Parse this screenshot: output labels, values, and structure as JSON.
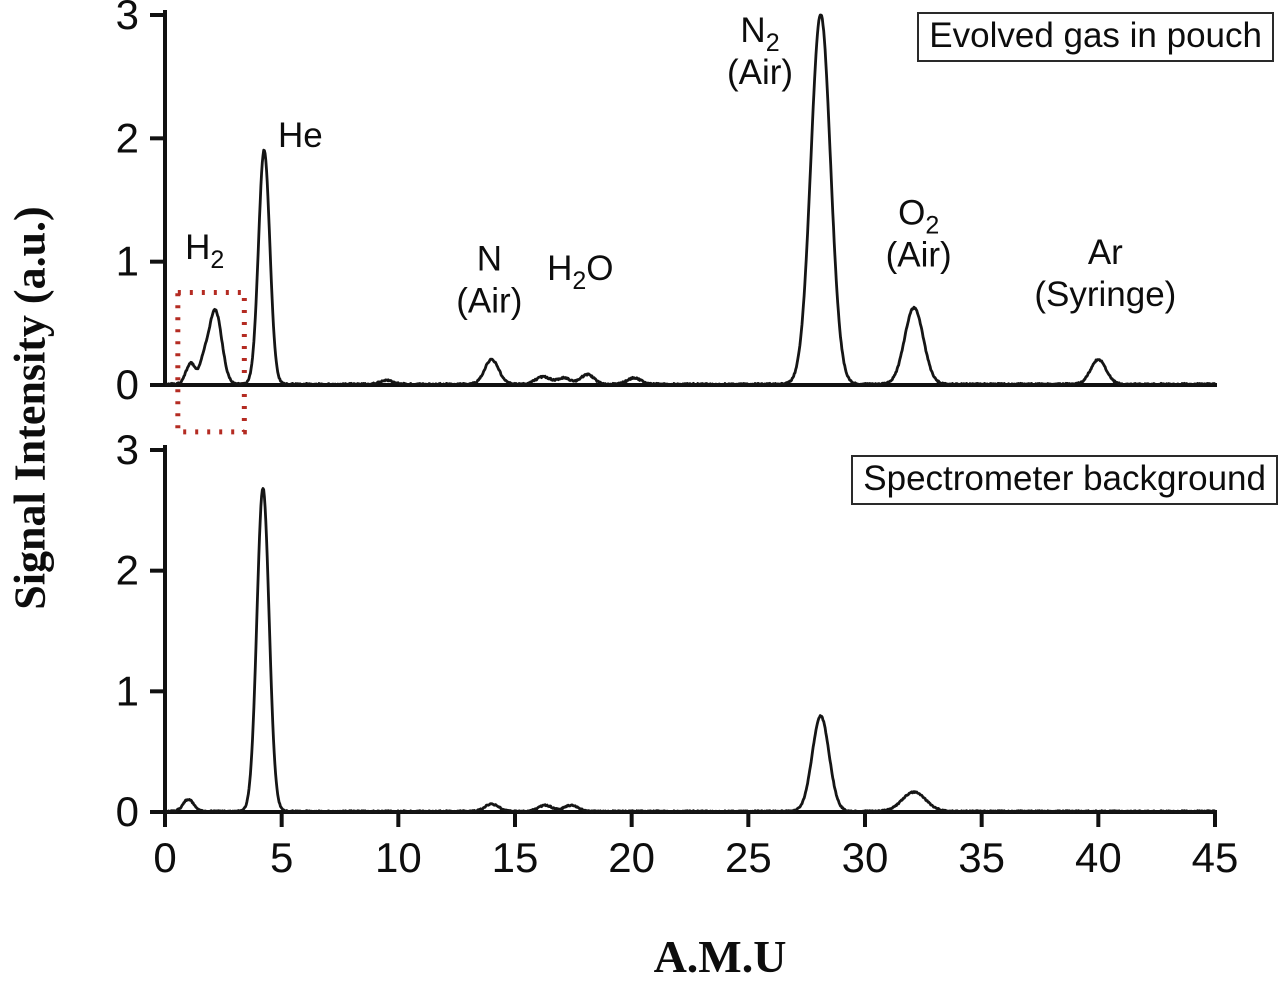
{
  "figure": {
    "ylabel": "Signal Intensity (a.u.)",
    "xlabel": "A.M.U"
  },
  "chart_data": [
    {
      "type": "line",
      "title": "Evolved gas in pouch",
      "legend_position": "top-right",
      "xlabel": "A.M.U",
      "ylabel": "Signal Intensity (a.u.)",
      "xlim": [
        0,
        45
      ],
      "ylim": [
        0,
        3
      ],
      "yticks": [
        0,
        1,
        2,
        3
      ],
      "xticks": [],
      "show_x_tick_labels": false,
      "grid": false,
      "line_color": "#151515",
      "axis_color": "#111111",
      "noise_amplitude": 0.013,
      "peaks": [
        {
          "x": 1.1,
          "height": 0.17,
          "width": 0.2
        },
        {
          "x": 1.65,
          "height": 0.14,
          "width": 0.18
        },
        {
          "x": 2.15,
          "height": 0.6,
          "width": 0.28
        },
        {
          "x": 4.25,
          "height": 1.9,
          "width": 0.24
        },
        {
          "x": 9.5,
          "height": 0.03,
          "width": 0.3
        },
        {
          "x": 14.0,
          "height": 0.2,
          "width": 0.3
        },
        {
          "x": 16.2,
          "height": 0.06,
          "width": 0.32
        },
        {
          "x": 17.1,
          "height": 0.05,
          "width": 0.28
        },
        {
          "x": 18.1,
          "height": 0.08,
          "width": 0.28
        },
        {
          "x": 20.1,
          "height": 0.05,
          "width": 0.3
        },
        {
          "x": 28.1,
          "height": 3.0,
          "width": 0.42
        },
        {
          "x": 32.1,
          "height": 0.62,
          "width": 0.4
        },
        {
          "x": 40.0,
          "height": 0.2,
          "width": 0.33
        }
      ],
      "annotations": [
        {
          "lines": [
            "H_2"
          ],
          "x": 1.7,
          "y": 1.02
        },
        {
          "lines": [
            "He"
          ],
          "x": 5.8,
          "y": 1.93
        },
        {
          "lines": [
            "N",
            "(Air)"
          ],
          "x": 13.9,
          "y": 0.93
        },
        {
          "lines": [
            "H_2O"
          ],
          "x": 17.8,
          "y": 0.85
        },
        {
          "lines": [
            "N_2",
            "(Air)"
          ],
          "x": 25.5,
          "y": 2.78
        },
        {
          "lines": [
            "O_2",
            "(Air)"
          ],
          "x": 32.3,
          "y": 1.3
        },
        {
          "lines": [
            "Ar",
            "(Syringe)"
          ],
          "x": 40.3,
          "y": 0.98
        }
      ],
      "highlight_box": {
        "x0": 0.55,
        "x1": 3.4,
        "y0": -0.38,
        "y1": 0.75,
        "color": "#b42b22"
      }
    },
    {
      "type": "line",
      "title": "Spectrometer background",
      "legend_position": "top-right",
      "xlabel": "A.M.U",
      "ylabel": "Signal Intensity (a.u.)",
      "xlim": [
        0,
        45
      ],
      "ylim": [
        0,
        3
      ],
      "yticks": [
        0,
        1,
        2,
        3
      ],
      "xticks": [
        0,
        5,
        10,
        15,
        20,
        25,
        30,
        35,
        40,
        45
      ],
      "show_x_tick_labels": true,
      "grid": false,
      "line_color": "#151515",
      "axis_color": "#111111",
      "noise_amplitude": 0.011,
      "peaks": [
        {
          "x": 1.0,
          "height": 0.1,
          "width": 0.22
        },
        {
          "x": 4.2,
          "height": 2.68,
          "width": 0.26
        },
        {
          "x": 14.0,
          "height": 0.06,
          "width": 0.3
        },
        {
          "x": 16.3,
          "height": 0.05,
          "width": 0.3
        },
        {
          "x": 17.4,
          "height": 0.05,
          "width": 0.3
        },
        {
          "x": 28.1,
          "height": 0.79,
          "width": 0.36
        },
        {
          "x": 32.1,
          "height": 0.16,
          "width": 0.5
        }
      ],
      "annotations": []
    }
  ]
}
